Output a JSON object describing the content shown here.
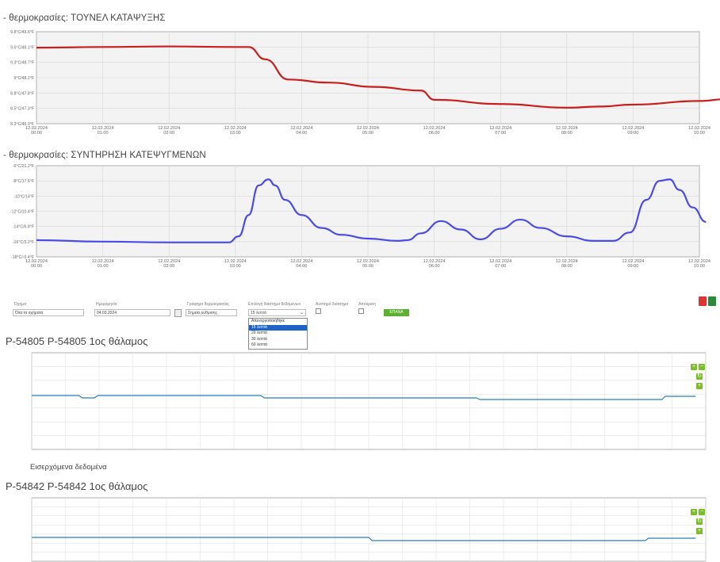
{
  "chart_data": [
    {
      "type": "line",
      "title": "- θερμοκρασίες: ΤΟΥΝΕΛ ΚΑΤΑΨΥΞΗΣ",
      "y_ticks": [
        "9.8°C/49.6°F",
        "9.5°C/49.1°F",
        "9.3°C/48.7°F",
        "9°C/48.2°F",
        "8.8°C/47.8°F",
        "8.5°C/47.3°F",
        "8.3°C/46.9°F"
      ],
      "ylim": [
        8.3,
        9.8
      ],
      "x_ticks": [
        {
          "date": "12.02.2024",
          "time": "00:00"
        },
        {
          "date": "12.02.2024",
          "time": "01:00"
        },
        {
          "date": "12.02.2024",
          "time": "02:00"
        },
        {
          "date": "12.02.2024",
          "time": "03:00"
        },
        {
          "date": "12.02.2024",
          "time": "04:00"
        },
        {
          "date": "12.02.2024",
          "time": "05:00"
        },
        {
          "date": "12.02.2024",
          "time": "06:00"
        },
        {
          "date": "12.02.2024",
          "time": "07:00"
        },
        {
          "date": "12.02.2024",
          "time": "08:00"
        },
        {
          "date": "12.02.2024",
          "time": "09:00"
        },
        {
          "date": "12.02.2024",
          "time": "10:00"
        }
      ],
      "series": [
        {
          "color": "#c81e1e",
          "x": [
            0,
            1,
            2,
            3,
            3.2,
            3.45,
            3.8,
            4.4,
            5.1,
            5.8,
            6.0,
            7.0,
            8.0,
            8.5,
            9.0,
            10.0,
            10.4
          ],
          "y": [
            9.54,
            9.55,
            9.56,
            9.55,
            9.55,
            9.35,
            9.02,
            8.97,
            8.9,
            8.84,
            8.69,
            8.62,
            8.56,
            8.58,
            8.61,
            8.67,
            8.7
          ]
        }
      ],
      "grid": true
    },
    {
      "type": "line",
      "title": "- θερμοκρασίες: ΣΥΝΤΗΡΗΣΗ ΚΑΤΕΨΥΓΜΕΝΩΝ",
      "y_ticks": [
        "-6°C/21.2°F",
        "-8°C/17.6°F",
        "-10°C/14°F",
        "-12°C/10.4°F",
        "-14°C/6.8°F",
        "-16°C/3.2°F",
        "-18°C/-0.4°F"
      ],
      "ylim": [
        -18,
        -6
      ],
      "x_ticks": [
        {
          "date": "12.02.2024",
          "time": "00:00"
        },
        {
          "date": "12.02.2024",
          "time": "01:00"
        },
        {
          "date": "12.02.2024",
          "time": "02:00"
        },
        {
          "date": "12.02.2024",
          "time": "03:00"
        },
        {
          "date": "12.02.2024",
          "time": "04:00"
        },
        {
          "date": "12.02.2024",
          "time": "05:00"
        },
        {
          "date": "12.02.2024",
          "time": "06:00"
        },
        {
          "date": "12.02.2024",
          "time": "07:00"
        },
        {
          "date": "12.02.2024",
          "time": "08:00"
        },
        {
          "date": "12.02.2024",
          "time": "09:00"
        },
        {
          "date": "12.02.2024",
          "time": "10:00"
        }
      ],
      "series": [
        {
          "color": "#4b4be6",
          "x": [
            0,
            1,
            2,
            2.9,
            3.05,
            3.2,
            3.35,
            3.5,
            3.6,
            3.75,
            4.0,
            4.3,
            4.6,
            5.0,
            5.45,
            5.6,
            5.8,
            6.1,
            6.4,
            6.7,
            7.0,
            7.3,
            7.6,
            8.0,
            8.4,
            8.7,
            8.95,
            9.2,
            9.4,
            9.55,
            9.7,
            9.9,
            10.1
          ],
          "y": [
            -15.8,
            -16.0,
            -16.1,
            -16.1,
            -15.3,
            -12.5,
            -8.6,
            -7.8,
            -8.6,
            -10.5,
            -12.5,
            -14.2,
            -15.1,
            -15.6,
            -15.9,
            -15.8,
            -14.9,
            -13.3,
            -14.4,
            -15.7,
            -14.3,
            -13.1,
            -14.2,
            -15.3,
            -15.9,
            -15.9,
            -14.8,
            -10.5,
            -8.0,
            -7.8,
            -9.2,
            -11.5,
            -13.4
          ]
        }
      ],
      "grid": true
    }
  ],
  "controls": {
    "labels": [
      "Όχημα",
      "Ημερομηνία",
      "Γράφημα θερμοκρασίας",
      "Επιλογή διάστημα δεδομένων",
      "Αυστηρό διάστημα",
      "Απόκριση"
    ],
    "vehicle_value": "Όλα τα οχήματα",
    "date_value": "04.03.2024",
    "graph_value": "Σημεία ρύθμισης",
    "interval_value": "15 λεπτά",
    "dropdown_options": [
      "Απενεργοποιήθηκε",
      "15 λεπτά",
      "20 λεπτά",
      "30 λεπτά",
      "60 λεπτά"
    ],
    "dropdown_selected_index": 1,
    "go_button": "ΕΠΑΝΑ"
  },
  "sections": {
    "chamber1_title": "P-54805 P-54805 1ος θάλαμος",
    "incoming_label": "Εισερχόμενα δεδομένα",
    "chamber2_title": "P-54842 P-54842 1ος θάλαμος"
  },
  "icons": [
    "pdf-icon",
    "excel-icon",
    "zoom-in-icon",
    "zoom-out-icon",
    "refresh-icon"
  ]
}
